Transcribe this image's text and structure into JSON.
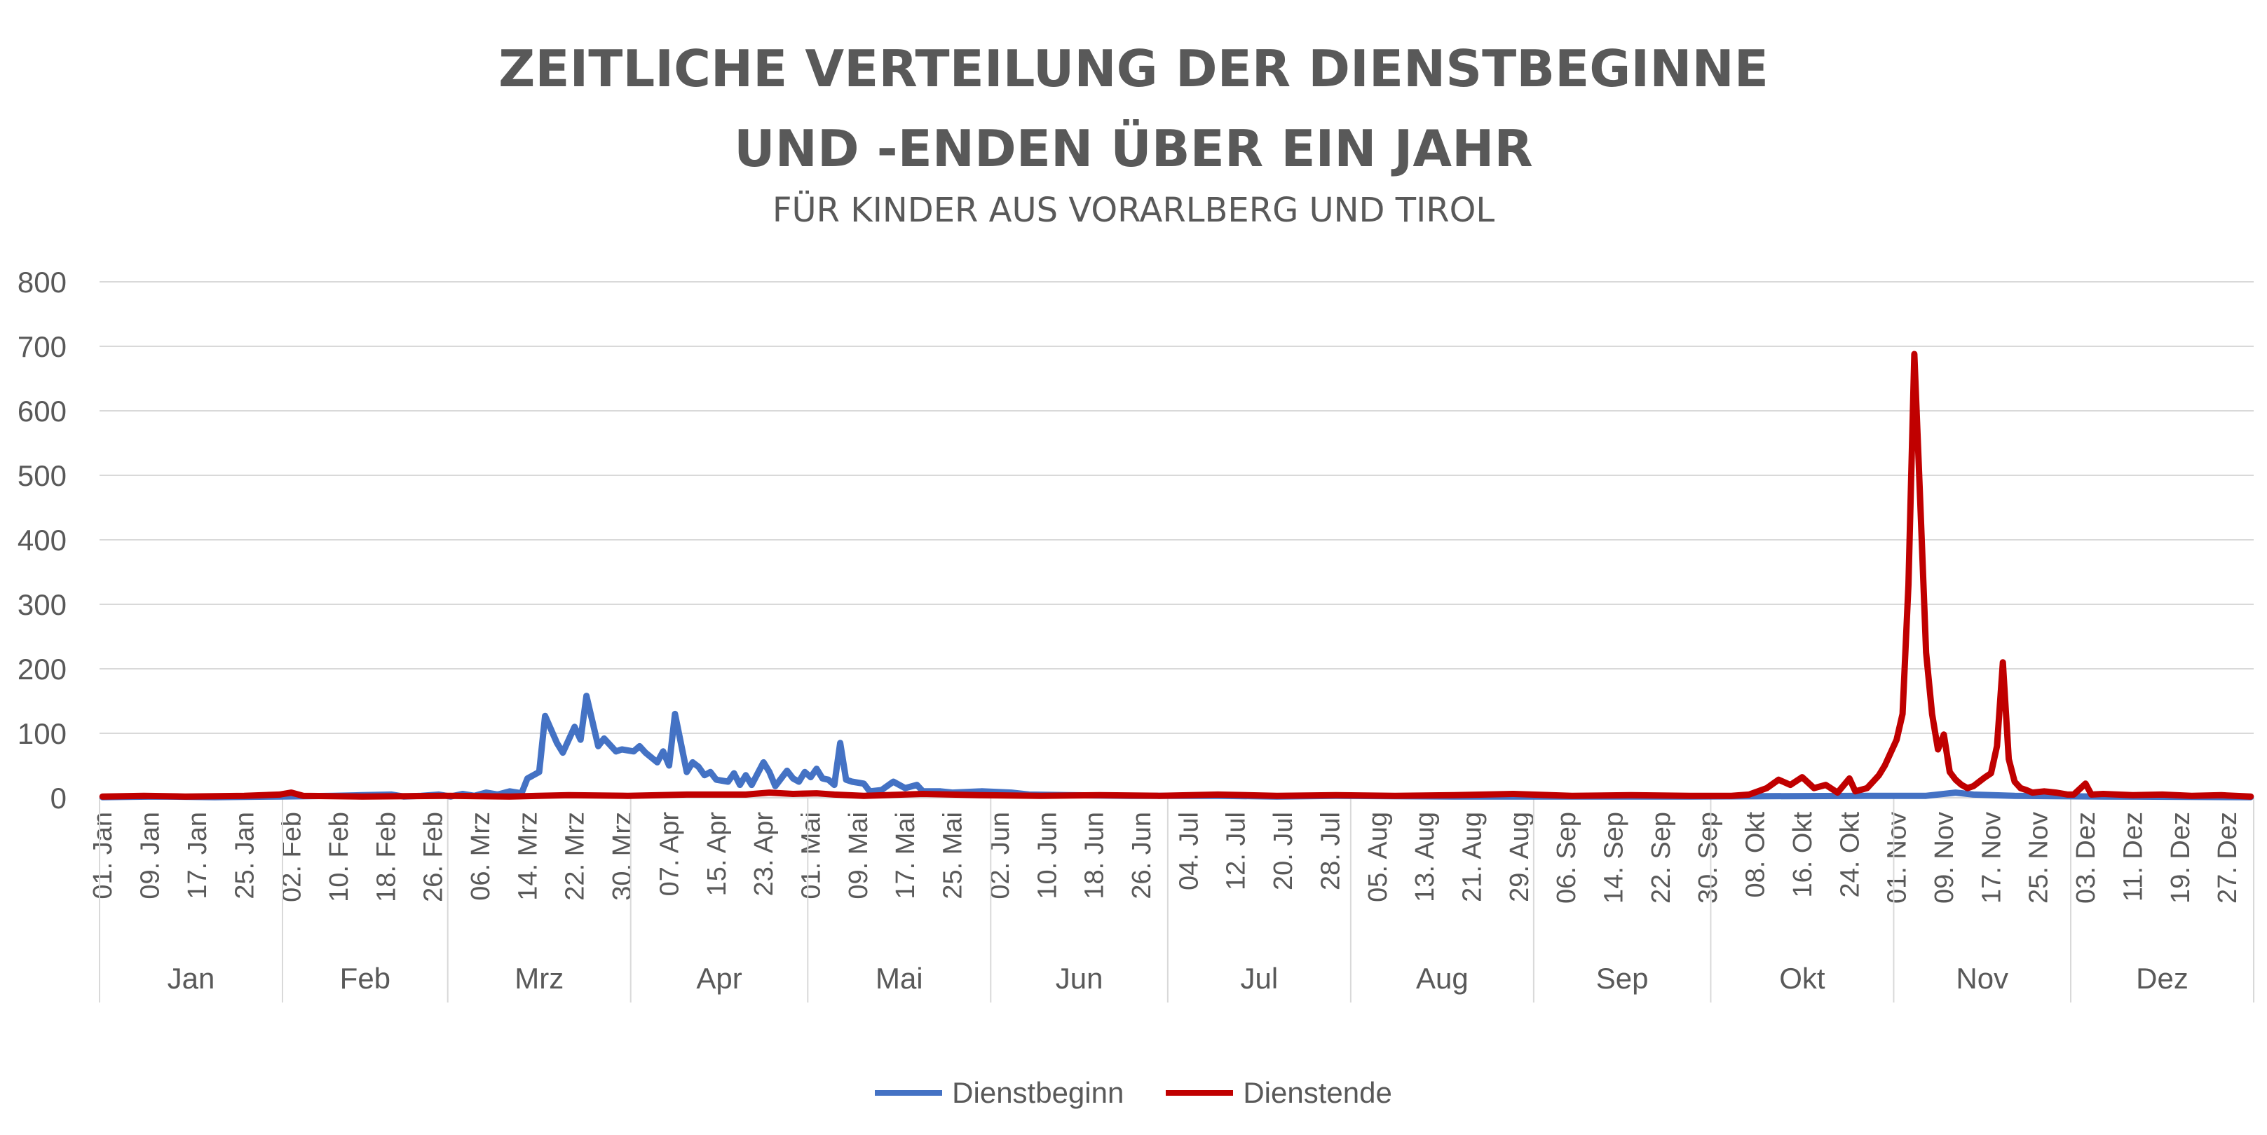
{
  "title_line1": "ZEITLICHE VERTEILUNG DER DIENSTBEGINNE",
  "title_line2": "UND -ENDEN ÜBER EIN JAHR",
  "subtitle": "FÜR KINDER AUS VORARLBERG UND TIROL",
  "colors": {
    "Dienstbeginn": "#4472C4",
    "Dienstende": "#C00000",
    "grid": "#D9D9D9",
    "text": "#595959"
  },
  "chart_data": {
    "type": "line",
    "title": "ZEITLICHE VERTEILUNG DER DIENSTBEGINNE UND -ENDEN ÜBER EIN JAHR",
    "subtitle": "FÜR KINDER AUS VORARLBERG UND TIROL",
    "ylim": [
      0,
      800
    ],
    "yticks": [
      0,
      100,
      200,
      300,
      400,
      500,
      600,
      700,
      800
    ],
    "grid": true,
    "legend": "bottom",
    "x_start": "01. Jan",
    "x_end": "31. Dez",
    "tick_labels": [
      "01. Jan",
      "09. Jan",
      "17. Jan",
      "25. Jan",
      "02. Feb",
      "10. Feb",
      "18. Feb",
      "26. Feb",
      "06. Mrz",
      "14. Mrz",
      "22. Mrz",
      "30. Mrz",
      "07. Apr",
      "15. Apr",
      "23. Apr",
      "01. Mai",
      "09. Mai",
      "17. Mai",
      "25. Mai",
      "02. Jun",
      "10. Jun",
      "18. Jun",
      "26. Jun",
      "04. Jul",
      "12. Jul",
      "20. Jul",
      "28. Jul",
      "05. Aug",
      "13. Aug",
      "21. Aug",
      "29. Aug",
      "06. Sep",
      "14. Sep",
      "22. Sep",
      "30. Sep",
      "08. Okt",
      "16. Okt",
      "24. Okt",
      "01. Nov",
      "09. Nov",
      "17. Nov",
      "25. Nov",
      "03. Dez",
      "11. Dez",
      "19. Dez",
      "27. Dez"
    ],
    "tick_days": [
      1,
      9,
      17,
      25,
      33,
      41,
      49,
      57,
      65,
      73,
      81,
      89,
      97,
      105,
      113,
      121,
      129,
      137,
      145,
      153,
      161,
      169,
      177,
      185,
      193,
      201,
      209,
      217,
      225,
      233,
      241,
      249,
      257,
      265,
      273,
      281,
      289,
      297,
      305,
      313,
      321,
      329,
      337,
      345,
      353,
      361
    ],
    "months": [
      {
        "label": "Jan",
        "start": 1,
        "end": 31
      },
      {
        "label": "Feb",
        "start": 32,
        "end": 59
      },
      {
        "label": "Mrz",
        "start": 60,
        "end": 90
      },
      {
        "label": "Apr",
        "start": 91,
        "end": 120
      },
      {
        "label": "Mai",
        "start": 121,
        "end": 151
      },
      {
        "label": "Jun",
        "start": 152,
        "end": 181
      },
      {
        "label": "Jul",
        "start": 182,
        "end": 212
      },
      {
        "label": "Aug",
        "start": 213,
        "end": 243
      },
      {
        "label": "Sep",
        "start": 244,
        "end": 273
      },
      {
        "label": "Okt",
        "start": 274,
        "end": 304
      },
      {
        "label": "Nov",
        "start": 305,
        "end": 334
      },
      {
        "label": "Dez",
        "start": 335,
        "end": 365
      }
    ],
    "series": [
      {
        "name": "Dienstbeginn",
        "points": [
          [
            1,
            1
          ],
          [
            10,
            2
          ],
          [
            20,
            1
          ],
          [
            31,
            2
          ],
          [
            40,
            3
          ],
          [
            45,
            4
          ],
          [
            50,
            5
          ],
          [
            52,
            2
          ],
          [
            55,
            3
          ],
          [
            58,
            5
          ],
          [
            60,
            2
          ],
          [
            62,
            6
          ],
          [
            64,
            3
          ],
          [
            66,
            8
          ],
          [
            68,
            5
          ],
          [
            70,
            10
          ],
          [
            72,
            7
          ],
          [
            73,
            30
          ],
          [
            75,
            40
          ],
          [
            76,
            127
          ],
          [
            78,
            85
          ],
          [
            79,
            70
          ],
          [
            81,
            110
          ],
          [
            82,
            90
          ],
          [
            83,
            158
          ],
          [
            85,
            80
          ],
          [
            86,
            92
          ],
          [
            88,
            72
          ],
          [
            89,
            75
          ],
          [
            91,
            72
          ],
          [
            92,
            80
          ],
          [
            93,
            70
          ],
          [
            95,
            55
          ],
          [
            96,
            72
          ],
          [
            97,
            50
          ],
          [
            98,
            130
          ],
          [
            100,
            40
          ],
          [
            101,
            55
          ],
          [
            102,
            48
          ],
          [
            103,
            35
          ],
          [
            104,
            40
          ],
          [
            105,
            28
          ],
          [
            107,
            25
          ],
          [
            108,
            38
          ],
          [
            109,
            20
          ],
          [
            110,
            35
          ],
          [
            111,
            20
          ],
          [
            113,
            55
          ],
          [
            114,
            40
          ],
          [
            115,
            18
          ],
          [
            117,
            42
          ],
          [
            118,
            30
          ],
          [
            119,
            25
          ],
          [
            120,
            40
          ],
          [
            121,
            32
          ],
          [
            122,
            45
          ],
          [
            123,
            30
          ],
          [
            124,
            28
          ],
          [
            125,
            20
          ],
          [
            126,
            85
          ],
          [
            127,
            28
          ],
          [
            128,
            25
          ],
          [
            130,
            22
          ],
          [
            131,
            10
          ],
          [
            133,
            12
          ],
          [
            135,
            25
          ],
          [
            137,
            15
          ],
          [
            139,
            20
          ],
          [
            140,
            10
          ],
          [
            143,
            10
          ],
          [
            145,
            8
          ],
          [
            150,
            10
          ],
          [
            155,
            8
          ],
          [
            158,
            5
          ],
          [
            165,
            4
          ],
          [
            175,
            3
          ],
          [
            190,
            3
          ],
          [
            200,
            2
          ],
          [
            210,
            3
          ],
          [
            230,
            2
          ],
          [
            250,
            2
          ],
          [
            270,
            2
          ],
          [
            300,
            3
          ],
          [
            310,
            3
          ],
          [
            315,
            8
          ],
          [
            318,
            5
          ],
          [
            325,
            3
          ],
          [
            340,
            2
          ],
          [
            365,
            1
          ]
        ]
      },
      {
        "name": "Dienstende",
        "points": [
          [
            1,
            2
          ],
          [
            8,
            3
          ],
          [
            15,
            2
          ],
          [
            25,
            3
          ],
          [
            31,
            5
          ],
          [
            33,
            8
          ],
          [
            35,
            3
          ],
          [
            45,
            2
          ],
          [
            60,
            3
          ],
          [
            70,
            2
          ],
          [
            80,
            4
          ],
          [
            90,
            3
          ],
          [
            100,
            5
          ],
          [
            110,
            5
          ],
          [
            114,
            8
          ],
          [
            118,
            6
          ],
          [
            122,
            7
          ],
          [
            125,
            5
          ],
          [
            130,
            3
          ],
          [
            140,
            6
          ],
          [
            150,
            4
          ],
          [
            160,
            3
          ],
          [
            170,
            4
          ],
          [
            180,
            3
          ],
          [
            190,
            5
          ],
          [
            200,
            3
          ],
          [
            210,
            4
          ],
          [
            220,
            3
          ],
          [
            230,
            4
          ],
          [
            240,
            6
          ],
          [
            250,
            3
          ],
          [
            260,
            4
          ],
          [
            270,
            3
          ],
          [
            274,
            3
          ],
          [
            277,
            3
          ],
          [
            280,
            5
          ],
          [
            283,
            15
          ],
          [
            285,
            28
          ],
          [
            287,
            20
          ],
          [
            289,
            32
          ],
          [
            291,
            15
          ],
          [
            293,
            20
          ],
          [
            295,
            8
          ],
          [
            297,
            30
          ],
          [
            298,
            10
          ],
          [
            300,
            15
          ],
          [
            301,
            25
          ],
          [
            302,
            35
          ],
          [
            303,
            50
          ],
          [
            305,
            90
          ],
          [
            306,
            130
          ],
          [
            307,
            330
          ],
          [
            308,
            688
          ],
          [
            309,
            460
          ],
          [
            310,
            225
          ],
          [
            311,
            130
          ],
          [
            312,
            75
          ],
          [
            313,
            98
          ],
          [
            314,
            40
          ],
          [
            315,
            28
          ],
          [
            316,
            20
          ],
          [
            317,
            15
          ],
          [
            318,
            18
          ],
          [
            319,
            25
          ],
          [
            320,
            32
          ],
          [
            321,
            38
          ],
          [
            322,
            80
          ],
          [
            323,
            210
          ],
          [
            324,
            60
          ],
          [
            325,
            25
          ],
          [
            326,
            15
          ],
          [
            327,
            12
          ],
          [
            328,
            8
          ],
          [
            330,
            10
          ],
          [
            332,
            8
          ],
          [
            334,
            5
          ],
          [
            335,
            5
          ],
          [
            337,
            22
          ],
          [
            338,
            5
          ],
          [
            340,
            6
          ],
          [
            345,
            4
          ],
          [
            350,
            5
          ],
          [
            355,
            3
          ],
          [
            360,
            4
          ],
          [
            365,
            2
          ]
        ]
      }
    ]
  }
}
